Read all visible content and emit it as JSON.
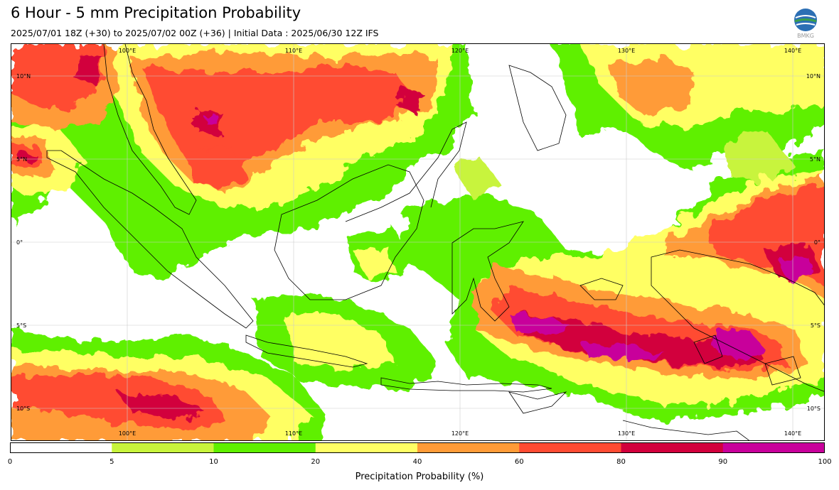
{
  "header": {
    "title": "6 Hour - 5 mm Precipitation Probability",
    "subtitle": "2025/07/01 18Z (+30) to 2025/07/02 00Z (+36) | Initial Data : 2025/06/30 12Z IFS"
  },
  "logo": {
    "text": "BMKG",
    "icon": "bmkg-globe-logo"
  },
  "map": {
    "lon_labels_top": [
      "100°E",
      "110°E",
      "120°E",
      "130°E",
      "140°E"
    ],
    "lon_labels_bottom": [
      "100°E",
      "110°E",
      "120°E",
      "130°E",
      "140°E"
    ],
    "lat_labels_left": [
      "10°N",
      "5°N",
      "0°",
      "5°S",
      "10°S"
    ],
    "lat_labels_right": [
      "10°N",
      "5°N",
      "0°",
      "5°S",
      "10°S"
    ]
  },
  "colorbar": {
    "ticks": [
      "0",
      "5",
      "10",
      "20",
      "40",
      "60",
      "80",
      "90",
      "100"
    ],
    "colors": [
      "#ffffff",
      "#c8f43c",
      "#5ff000",
      "#ffff64",
      "#ff9b37",
      "#ff4b32",
      "#d2003c",
      "#c8009b"
    ],
    "label": "Precipitation Probability (%)"
  }
}
